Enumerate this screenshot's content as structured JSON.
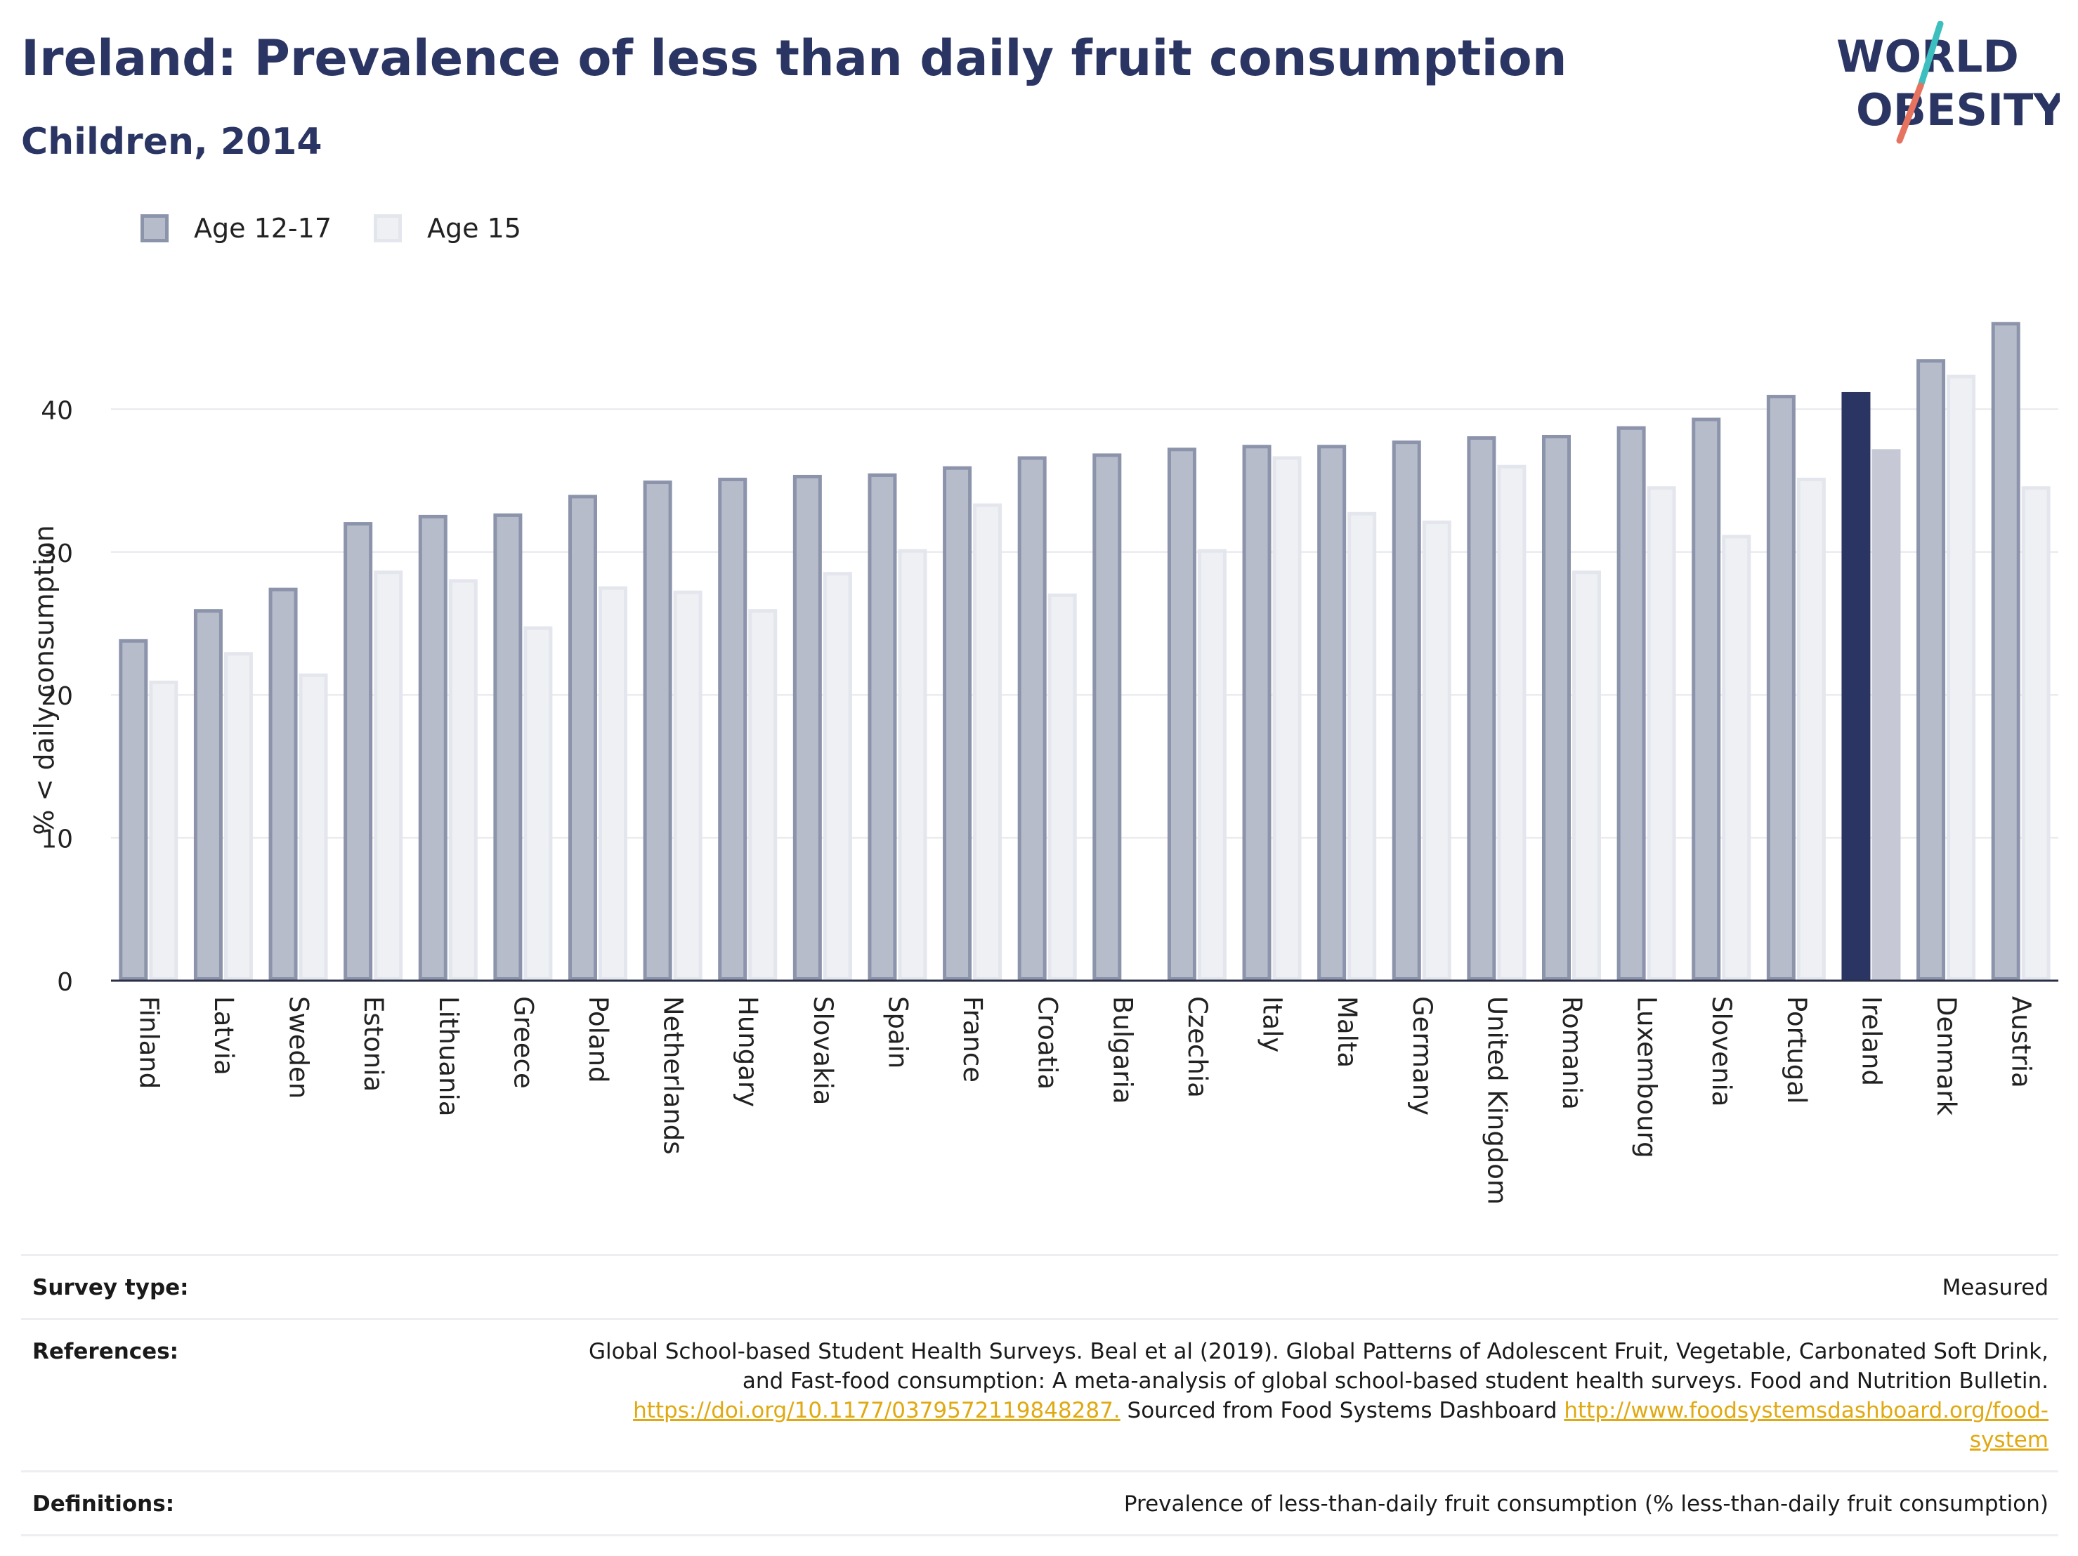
{
  "title": "Ireland: Prevalence of less than daily fruit consumption",
  "subtitle": "Children, 2014",
  "logo": {
    "line1": "WORLD",
    "line2": "OBESITY"
  },
  "colors": {
    "title": "#2b3563",
    "series1_fill": "#b7bccb",
    "series1_stroke": "#8c94ab",
    "series2_fill": "#eef0f4",
    "series2_stroke": "#e4e6ed",
    "highlight_series1": "#2b3563",
    "highlight_series2": "#c6c9d5",
    "logo_dark": "#2b3563",
    "logo_teal": "#3dbfbf",
    "logo_red": "#e5735f",
    "link": "#e0a912"
  },
  "chart_data": {
    "type": "bar",
    "highlight": "Ireland",
    "ylabel": "% < daily consumption",
    "xlabel": "",
    "ylim": [
      0,
      47
    ],
    "yticks": [
      0,
      10,
      20,
      30,
      40
    ],
    "grid": true,
    "legend_position": "top-left",
    "categories": [
      "Finland",
      "Latvia",
      "Sweden",
      "Estonia",
      "Lithuania",
      "Greece",
      "Poland",
      "Netherlands",
      "Hungary",
      "Slovakia",
      "Spain",
      "France",
      "Croatia",
      "Bulgaria",
      "Czechia",
      "Italy",
      "Malta",
      "Germany",
      "United Kingdom",
      "Romania",
      "Luxembourg",
      "Slovenia",
      "Portugal",
      "Ireland",
      "Denmark",
      "Austria"
    ],
    "series": [
      {
        "name": "Age 12-17",
        "values": [
          23.9,
          26.0,
          27.5,
          32.1,
          32.6,
          32.7,
          34.0,
          35.0,
          35.2,
          35.4,
          35.5,
          36.0,
          36.7,
          36.9,
          37.3,
          37.5,
          37.5,
          37.8,
          38.1,
          38.2,
          38.8,
          39.4,
          41.0,
          41.2,
          43.5,
          46.1
        ]
      },
      {
        "name": "Age 15",
        "values": [
          21.0,
          23.0,
          21.5,
          28.7,
          28.1,
          24.8,
          27.6,
          27.3,
          26.0,
          28.6,
          30.2,
          33.4,
          27.1,
          null,
          30.2,
          36.7,
          32.8,
          32.2,
          36.1,
          28.7,
          34.6,
          31.2,
          35.2,
          37.2,
          42.4,
          34.6
        ]
      }
    ]
  },
  "meta": {
    "survey_label": "Survey type:",
    "survey_value": "Measured",
    "references_label": "References:",
    "references_line1": "Global School-based Student Health Surveys. Beal et al (2019). Global Patterns of Adolescent Fruit, Vegetable, Carbonated Soft Drink,",
    "references_line2": "and Fast-food consumption: A meta-analysis of global school-based student health surveys. Food and Nutrition Bulletin.",
    "references_doi": "https://doi.org/10.1177/0379572119848287.",
    "references_sourced": " Sourced from Food Systems Dashboard ",
    "references_link_part1": "http://www.foodsystemsdashboard.org/food-",
    "references_link_part2": "system",
    "definitions_label": "Definitions:",
    "definitions_value": "Prevalence of less-than-daily fruit consumption (% less-than-daily fruit consumption)"
  }
}
